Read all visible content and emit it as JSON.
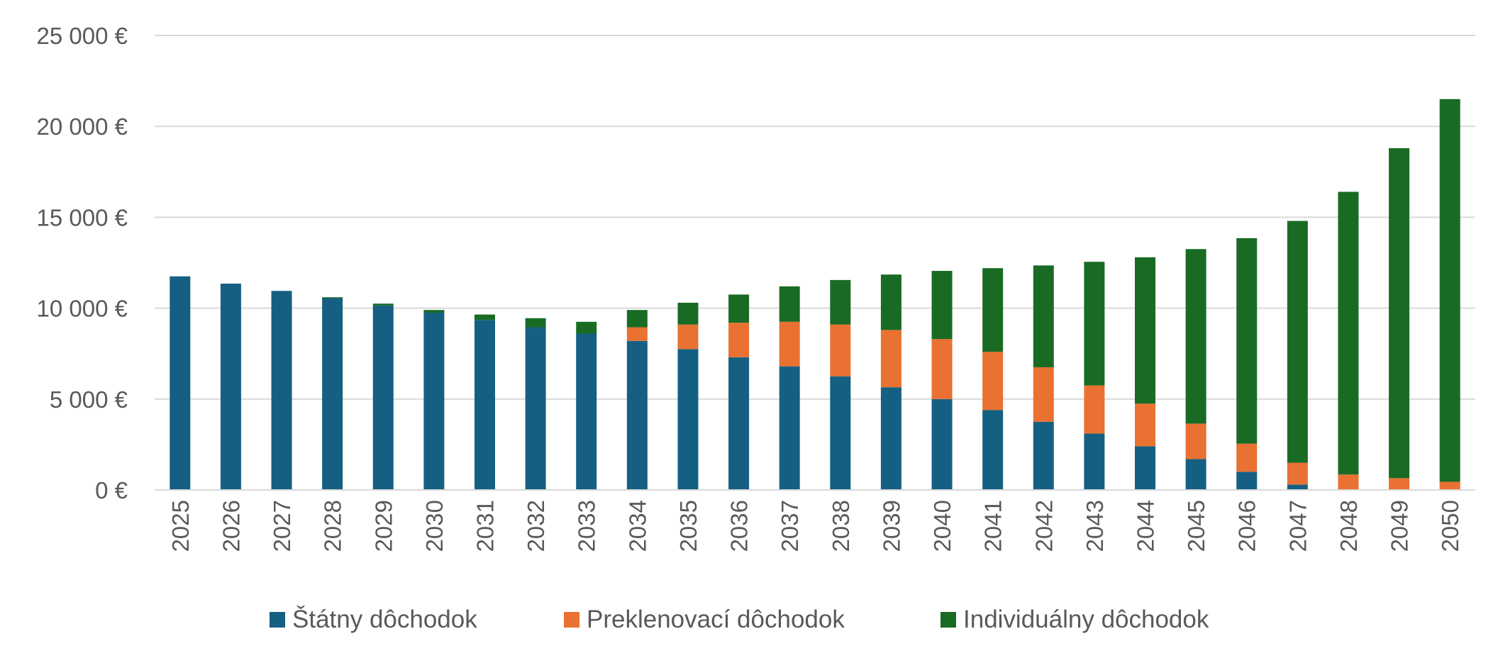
{
  "chart_data": {
    "type": "bar",
    "stacked": true,
    "categories": [
      "2025",
      "2026",
      "2027",
      "2028",
      "2029",
      "2030",
      "2031",
      "2032",
      "2033",
      "2034",
      "2035",
      "2036",
      "2037",
      "2038",
      "2039",
      "2040",
      "2041",
      "2042",
      "2043",
      "2044",
      "2045",
      "2046",
      "2047",
      "2048",
      "2049",
      "2050"
    ],
    "series": [
      {
        "name": "Štátny dôchodok",
        "color": "#156082",
        "values": [
          11750,
          11350,
          10950,
          10550,
          10150,
          9750,
          9350,
          8950,
          8600,
          8200,
          7750,
          7300,
          6800,
          6250,
          5650,
          5000,
          4400,
          3750,
          3100,
          2400,
          1700,
          1000,
          300,
          0,
          0,
          0
        ]
      },
      {
        "name": "Preklenovací dôchodok",
        "color": "#E97132",
        "values": [
          0,
          0,
          0,
          0,
          0,
          0,
          0,
          0,
          0,
          750,
          1350,
          1900,
          2450,
          2850,
          3150,
          3300,
          3200,
          3000,
          2650,
          2350,
          1950,
          1550,
          1200,
          850,
          650,
          450
        ]
      },
      {
        "name": "Individuálny dôchodok",
        "color": "#196B24",
        "values": [
          0,
          0,
          0,
          50,
          100,
          150,
          300,
          500,
          650,
          950,
          1200,
          1550,
          1950,
          2450,
          3050,
          3750,
          4600,
          5600,
          6800,
          8050,
          9600,
          11300,
          13300,
          15550,
          18150,
          21050
        ]
      }
    ],
    "y_ticks": [
      "0 €",
      "5 000 €",
      "10 000 €",
      "15 000 €",
      "20 000 €",
      "25 000 €"
    ],
    "ylim": [
      0,
      25000
    ],
    "y_step": 5000,
    "grid": true,
    "legend_position": "bottom"
  }
}
